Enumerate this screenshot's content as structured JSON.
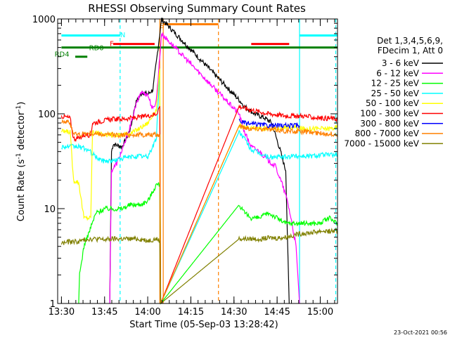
{
  "chart_data": {
    "type": "line",
    "title": "RHESSI Observing Summary Count Rates",
    "xlabel": "Start Time (05-Sep-03 13:28:42)",
    "ylabel": "Count Rate (s⁻¹ detector⁻¹)",
    "ylabel_parts": {
      "main": "Count Rate (s",
      "exp1": "-1",
      "mid": " detector",
      "exp2": "-1",
      "end": ")"
    },
    "yscale": "log",
    "ylim": [
      1,
      1000
    ],
    "xlim": [
      13.478,
      15.1
    ],
    "y_ticks": [
      {
        "v": 1,
        "label": "1"
      },
      {
        "v": 10,
        "label": "10"
      },
      {
        "v": 100,
        "label": "100"
      },
      {
        "v": 1000,
        "label": "1000"
      }
    ],
    "x_ticks": [
      {
        "v": 13.5,
        "label": "13:30"
      },
      {
        "v": 13.75,
        "label": "13:45"
      },
      {
        "v": 14.0,
        "label": "14:00"
      },
      {
        "v": 14.25,
        "label": "14:15"
      },
      {
        "v": 14.5,
        "label": "14:30"
      },
      {
        "v": 14.75,
        "label": "14:45"
      },
      {
        "v": 15.0,
        "label": "15:00"
      }
    ],
    "legend_header": [
      "Det 1,3,4,5,6,9,",
      "FDecim 1, Att 0"
    ],
    "legend_position": "right",
    "timestamp": "23-Oct-2021 00:56",
    "series": [
      {
        "name": "3 - 6 keV",
        "color": "#000000",
        "points": [
          [
            13.78,
            1
          ],
          [
            13.79,
            40
          ],
          [
            13.8,
            48
          ],
          [
            13.85,
            45
          ],
          [
            13.87,
            52
          ],
          [
            13.9,
            70
          ],
          [
            13.93,
            130
          ],
          [
            13.97,
            170
          ],
          [
            14.0,
            160
          ],
          [
            14.03,
            180
          ],
          [
            14.05,
            350
          ],
          [
            14.07,
            700
          ],
          [
            14.08,
            1000
          ],
          [
            14.53,
            140
          ],
          [
            14.56,
            120
          ],
          [
            14.62,
            100
          ],
          [
            14.68,
            90
          ],
          [
            14.72,
            80
          ],
          [
            14.74,
            60
          ],
          [
            14.77,
            40
          ],
          [
            14.8,
            25
          ],
          [
            14.82,
            1
          ]
        ]
      },
      {
        "name": "6 - 12 keV",
        "color": "#ff00ff",
        "points": [
          [
            13.78,
            1
          ],
          [
            13.79,
            25
          ],
          [
            13.82,
            30
          ],
          [
            13.86,
            45
          ],
          [
            13.9,
            75
          ],
          [
            13.93,
            120
          ],
          [
            13.96,
            170
          ],
          [
            14.0,
            160
          ],
          [
            14.03,
            110
          ],
          [
            14.05,
            140
          ],
          [
            14.07,
            400
          ],
          [
            14.08,
            700
          ],
          [
            14.53,
            100
          ],
          [
            14.56,
            65
          ],
          [
            14.6,
            45
          ],
          [
            14.65,
            40
          ],
          [
            14.7,
            32
          ],
          [
            14.74,
            28
          ],
          [
            14.78,
            18
          ],
          [
            14.81,
            12
          ],
          [
            14.83,
            8
          ],
          [
            14.86,
            4
          ],
          [
            14.88,
            1
          ]
        ]
      },
      {
        "name": "12 - 25 keV",
        "color": "#00ff00",
        "points": [
          [
            13.6,
            1
          ],
          [
            13.605,
            2
          ],
          [
            13.63,
            4
          ],
          [
            13.7,
            9
          ],
          [
            13.75,
            10
          ],
          [
            13.8,
            10
          ],
          [
            13.85,
            10
          ],
          [
            13.9,
            11
          ],
          [
            13.95,
            11
          ],
          [
            14.0,
            12
          ],
          [
            14.05,
            18
          ],
          [
            14.07,
            18
          ],
          [
            14.075,
            1
          ],
          [
            14.53,
            11
          ],
          [
            14.56,
            9
          ],
          [
            14.6,
            8
          ],
          [
            14.65,
            8
          ],
          [
            14.7,
            9
          ],
          [
            14.75,
            8
          ],
          [
            14.8,
            7
          ],
          [
            14.85,
            7
          ],
          [
            14.9,
            7
          ],
          [
            14.95,
            7
          ],
          [
            15.0,
            7
          ],
          [
            15.05,
            8
          ],
          [
            15.1,
            7
          ]
        ]
      },
      {
        "name": "25 - 50 keV",
        "color": "#00ffff",
        "points": [
          [
            13.5,
            45
          ],
          [
            13.6,
            45
          ],
          [
            13.65,
            42
          ],
          [
            13.7,
            35
          ],
          [
            13.74,
            32
          ],
          [
            13.8,
            32
          ],
          [
            13.85,
            34
          ],
          [
            13.9,
            35
          ],
          [
            13.95,
            36
          ],
          [
            14.0,
            35
          ],
          [
            14.05,
            55
          ],
          [
            14.07,
            300
          ],
          [
            14.075,
            1
          ],
          [
            14.53,
            65
          ],
          [
            14.56,
            55
          ],
          [
            14.6,
            42
          ],
          [
            14.65,
            38
          ],
          [
            14.7,
            35
          ],
          [
            14.75,
            35
          ],
          [
            14.8,
            35
          ],
          [
            14.85,
            36
          ],
          [
            14.9,
            36
          ],
          [
            14.95,
            36
          ],
          [
            15.0,
            37
          ],
          [
            15.05,
            37
          ],
          [
            15.1,
            37
          ]
        ]
      },
      {
        "name": "50 - 100 keV",
        "color": "#ffff00",
        "points": [
          [
            13.5,
            65
          ],
          [
            13.55,
            65
          ],
          [
            13.57,
            20
          ],
          [
            13.6,
            19
          ],
          [
            13.63,
            8
          ],
          [
            13.67,
            8
          ],
          [
            13.68,
            65
          ],
          [
            13.75,
            60
          ],
          [
            13.8,
            60
          ],
          [
            13.85,
            60
          ],
          [
            13.9,
            62
          ],
          [
            13.95,
            70
          ],
          [
            14.0,
            80
          ],
          [
            14.05,
            110
          ],
          [
            14.07,
            300
          ],
          [
            14.075,
            1
          ],
          [
            14.53,
            75
          ],
          [
            14.56,
            72
          ],
          [
            14.6,
            70
          ],
          [
            14.65,
            70
          ],
          [
            14.7,
            70
          ],
          [
            14.75,
            70
          ],
          [
            14.8,
            72
          ],
          [
            14.85,
            72
          ],
          [
            14.9,
            70
          ],
          [
            14.95,
            70
          ],
          [
            15.0,
            70
          ],
          [
            15.05,
            70
          ],
          [
            15.1,
            72
          ]
        ]
      },
      {
        "name": "100 - 300 keV",
        "color": "#ff0000",
        "points": [
          [
            13.5,
            95
          ],
          [
            13.55,
            90
          ],
          [
            13.57,
            55
          ],
          [
            13.6,
            55
          ],
          [
            13.63,
            60
          ],
          [
            13.67,
            60
          ],
          [
            13.68,
            80
          ],
          [
            13.75,
            85
          ],
          [
            13.8,
            88
          ],
          [
            13.85,
            88
          ],
          [
            13.9,
            90
          ],
          [
            13.95,
            92
          ],
          [
            14.0,
            95
          ],
          [
            14.05,
            100
          ],
          [
            14.07,
            120
          ],
          [
            14.075,
            1
          ],
          [
            14.53,
            120
          ],
          [
            14.56,
            115
          ],
          [
            14.6,
            110
          ],
          [
            14.65,
            105
          ],
          [
            14.7,
            100
          ],
          [
            14.75,
            98
          ],
          [
            14.8,
            95
          ],
          [
            14.85,
            95
          ],
          [
            14.9,
            95
          ],
          [
            14.95,
            92
          ],
          [
            15.0,
            90
          ],
          [
            15.05,
            90
          ],
          [
            15.1,
            88
          ]
        ]
      },
      {
        "name": "300 - 800 keV",
        "color": "#0000ff",
        "points": [
          [
            14.53,
            85
          ],
          [
            14.56,
            80
          ],
          [
            14.6,
            78
          ],
          [
            14.65,
            77
          ],
          [
            14.7,
            75
          ],
          [
            14.75,
            75
          ],
          [
            14.8,
            75
          ],
          [
            14.85,
            75
          ],
          [
            14.88,
            75
          ]
        ]
      },
      {
        "name": "800 - 7000 keV",
        "color": "#ff8000",
        "points": [
          [
            13.5,
            85
          ],
          [
            13.55,
            80
          ],
          [
            13.57,
            62
          ],
          [
            13.6,
            60
          ],
          [
            13.63,
            62
          ],
          [
            13.67,
            62
          ],
          [
            13.68,
            62
          ],
          [
            13.75,
            60
          ],
          [
            13.8,
            60
          ],
          [
            13.85,
            60
          ],
          [
            13.9,
            60
          ],
          [
            13.95,
            60
          ],
          [
            14.0,
            60
          ],
          [
            14.05,
            60
          ],
          [
            14.07,
            60
          ],
          [
            14.075,
            1
          ],
          [
            14.53,
            75
          ],
          [
            14.56,
            72
          ],
          [
            14.6,
            70
          ],
          [
            14.65,
            70
          ],
          [
            14.7,
            68
          ],
          [
            14.75,
            68
          ],
          [
            14.8,
            66
          ],
          [
            14.85,
            65
          ],
          [
            14.9,
            65
          ],
          [
            14.95,
            64
          ],
          [
            15.0,
            62
          ],
          [
            15.05,
            62
          ],
          [
            15.1,
            60
          ]
        ]
      },
      {
        "name": "7000 - 15000 keV",
        "color": "#808000",
        "points": [
          [
            13.5,
            4.3
          ],
          [
            13.55,
            4.5
          ],
          [
            13.6,
            4.5
          ],
          [
            13.65,
            4.8
          ],
          [
            13.7,
            4.8
          ],
          [
            13.75,
            4.7
          ],
          [
            13.8,
            4.8
          ],
          [
            13.85,
            4.8
          ],
          [
            13.9,
            4.8
          ],
          [
            13.95,
            4.8
          ],
          [
            14.0,
            4.6
          ],
          [
            14.05,
            4.8
          ],
          [
            14.07,
            4.6
          ],
          [
            14.075,
            1
          ],
          [
            14.53,
            4.8
          ],
          [
            14.6,
            4.8
          ],
          [
            14.65,
            4.8
          ],
          [
            14.7,
            4.9
          ],
          [
            14.75,
            4.9
          ],
          [
            14.8,
            5.0
          ],
          [
            14.85,
            5.3
          ],
          [
            14.9,
            5.5
          ],
          [
            14.95,
            5.6
          ],
          [
            15.0,
            5.8
          ],
          [
            15.05,
            5.8
          ],
          [
            15.1,
            5.8
          ]
        ]
      }
    ],
    "annotations": {
      "letters": [
        {
          "text": "N",
          "x": 13.84,
          "y": 640,
          "color": "#00ffff"
        },
        {
          "text": "F",
          "x": 13.78,
          "y": 520,
          "color": "#ff0000"
        },
        {
          "text": "S",
          "x": 14.07,
          "y": 800,
          "color": "#ff8000"
        },
        {
          "text": "RD0",
          "x": 13.66,
          "y": 470,
          "color": "#008000"
        },
        {
          "text": "RD4",
          "x": 13.46,
          "y": 400,
          "color": "#008000"
        }
      ],
      "bars": [
        {
          "label": "night-cyan-left",
          "x0": 13.5,
          "x1": 13.84,
          "y": 670,
          "color": "#00ffff"
        },
        {
          "label": "night-cyan-right",
          "x0": 14.88,
          "x1": 15.1,
          "y": 670,
          "color": "#00ffff"
        },
        {
          "label": "flare-red-1",
          "x0": 13.8,
          "x1": 14.04,
          "y": 545,
          "color": "#ff0000"
        },
        {
          "label": "flare-red-2",
          "x0": 14.6,
          "x1": 14.82,
          "y": 545,
          "color": "#ff0000"
        },
        {
          "label": "saa-orange",
          "x0": 14.09,
          "x1": 14.41,
          "y": 880,
          "color": "#ff8000"
        },
        {
          "label": "rd0-green",
          "x0": 13.5,
          "x1": 15.1,
          "y": 500,
          "color": "#008000"
        },
        {
          "label": "rd4-green",
          "x0": 13.58,
          "x1": 13.65,
          "y": 400,
          "color": "#008000"
        }
      ],
      "vlines": [
        {
          "x": 13.84,
          "color": "#00ffff",
          "dash": true
        },
        {
          "x": 14.07,
          "color": "#ff8000",
          "dash": false
        },
        {
          "x": 14.09,
          "color": "#ff8000",
          "dash": false
        },
        {
          "x": 14.41,
          "color": "#ff8000",
          "dash": true
        },
        {
          "x": 14.88,
          "color": "#00ffff",
          "dash": false
        },
        {
          "x": 15.09,
          "color": "#00ffff",
          "dash": true
        }
      ]
    }
  }
}
